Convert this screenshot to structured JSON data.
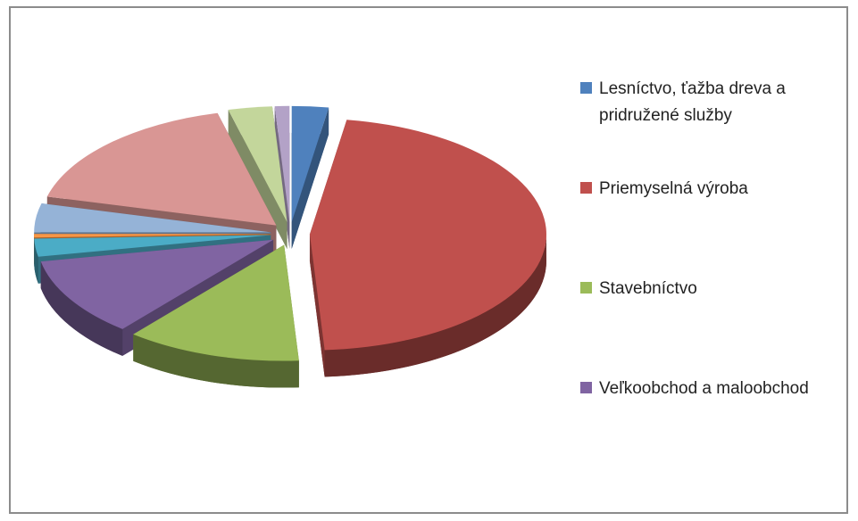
{
  "chart_data": {
    "type": "pie",
    "three_d": true,
    "exploded": true,
    "categories": [
      "Lesníctvo, ťažba dreva a pridružené služby",
      "Priemyselná výroba",
      "Stavebníctvo",
      "Veľkoobchod a maloobchod",
      null,
      null,
      null,
      null,
      null,
      null
    ],
    "values": [
      2.5,
      46.5,
      12,
      11,
      2.5,
      0.5,
      4,
      17,
      3,
      1
    ],
    "colors": [
      "#4f81bd",
      "#c0504d",
      "#9bbb59",
      "#8064a2",
      "#4bacc6",
      "#f79646",
      "#95b3d7",
      "#d99694",
      "#c3d69b",
      "#b3a2c7"
    ],
    "legend": "right"
  }
}
